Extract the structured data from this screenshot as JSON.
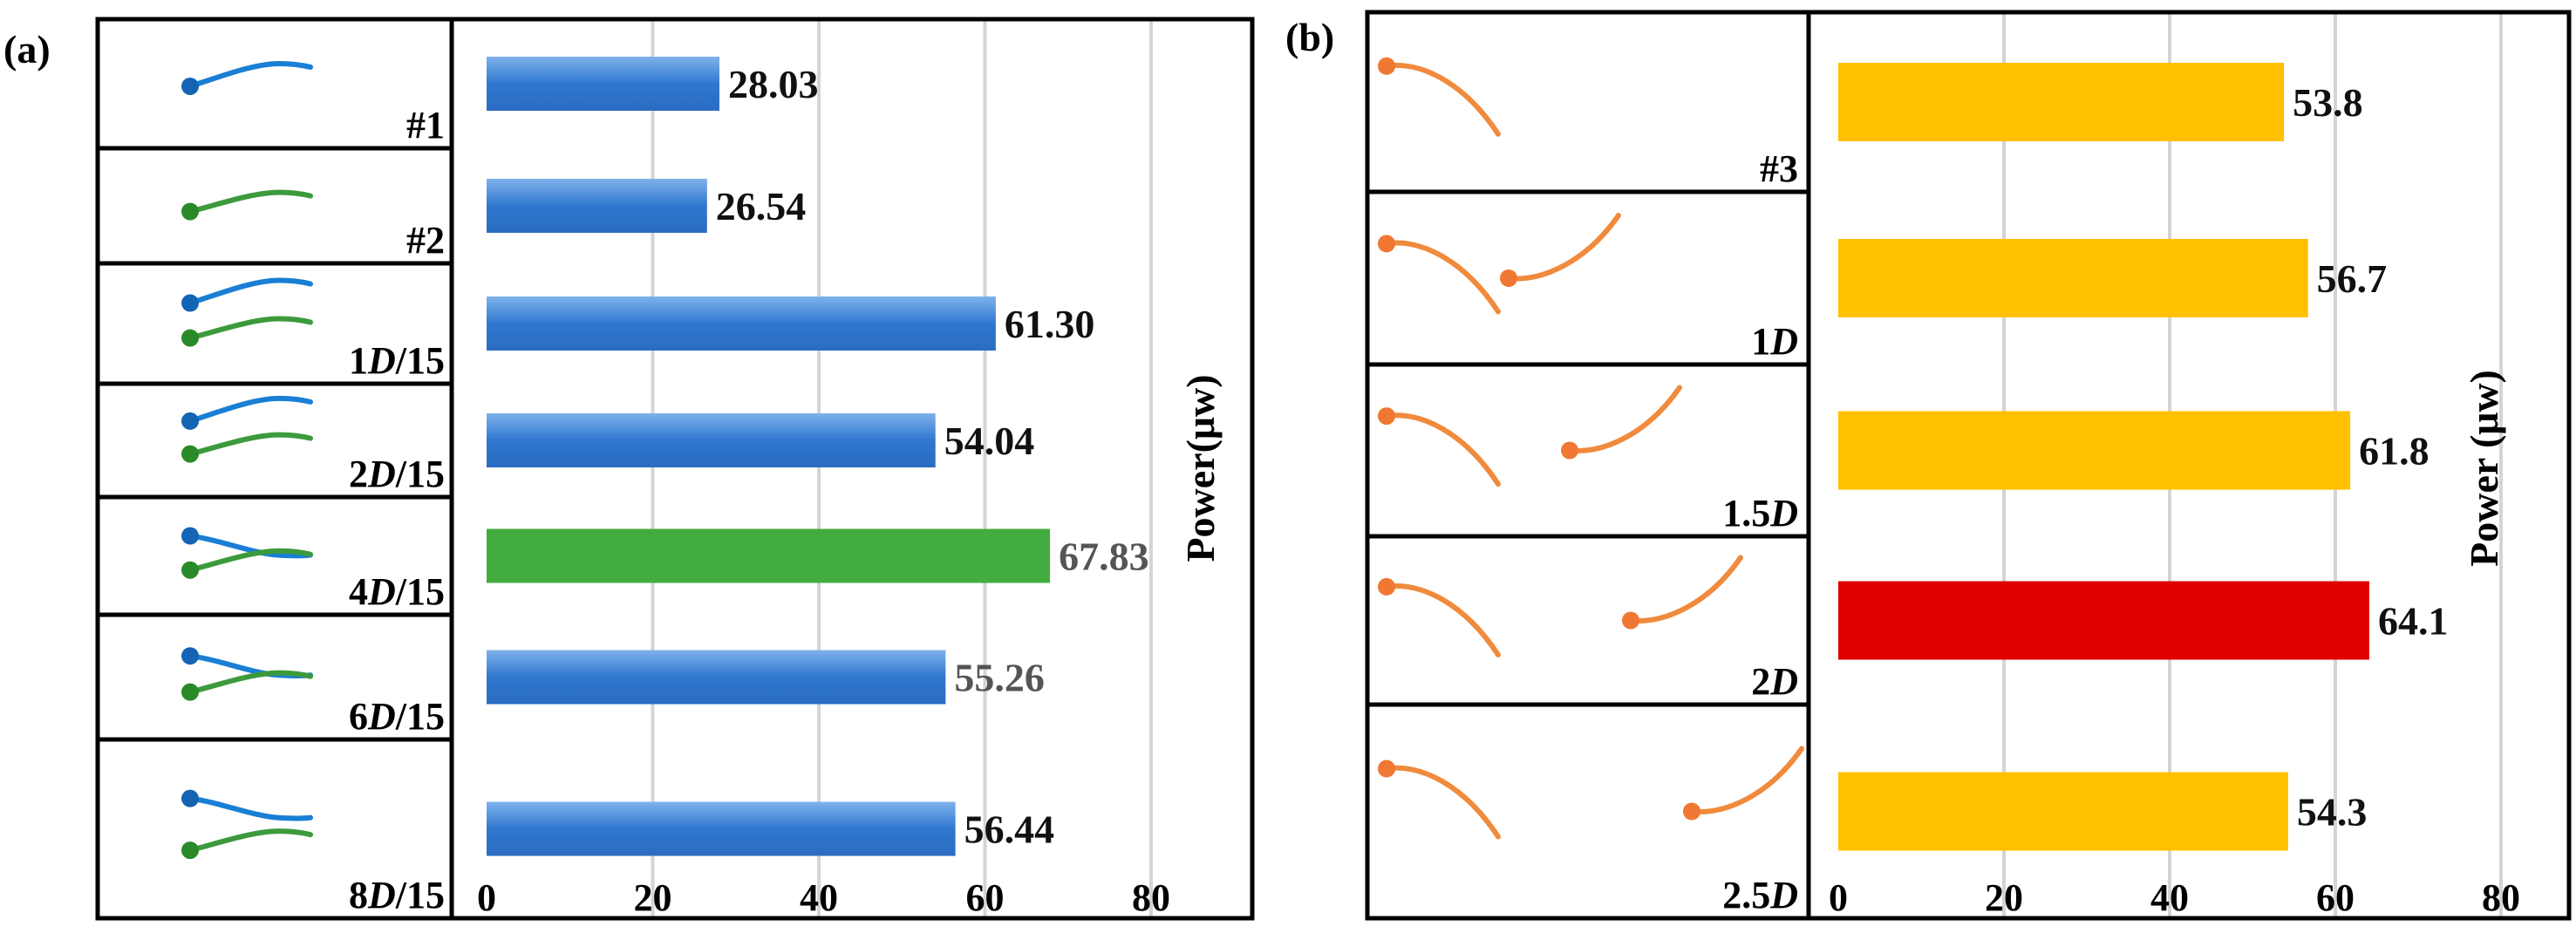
{
  "colors": {
    "blue_bar": "#2f77cf",
    "blue_bar_light": "#7fb2ec",
    "green_bar": "#43ac3e",
    "yellow_bar": "#ffc000",
    "red_bar": "#e00000",
    "blue_curve": "#1a7fd4",
    "blue_dot": "#1464b4",
    "green_curve": "#3c9a3c",
    "green_dot": "#2a8a2a",
    "orange_curve": "#f08a3c",
    "orange_dot": "#f07832",
    "grid": "#d4d4d4",
    "value_dark": "#111111",
    "value_gray": "#555555"
  },
  "chart_data": [
    {
      "panel": "(a)",
      "type": "bar",
      "orientation": "horizontal",
      "categories": [
        "#1",
        "#2",
        "1D/15",
        "2D/15",
        "4D/15",
        "6D/15",
        "8D/15"
      ],
      "category_labels": [
        {
          "plain": "#1",
          "italic": "",
          "suffix": ""
        },
        {
          "plain": "#2",
          "italic": "",
          "suffix": ""
        },
        {
          "plain": "1",
          "italic": "D",
          "suffix": "/15"
        },
        {
          "plain": "2",
          "italic": "D",
          "suffix": "/15"
        },
        {
          "plain": "4",
          "italic": "D",
          "suffix": "/15"
        },
        {
          "plain": "6",
          "italic": "D",
          "suffix": "/15"
        },
        {
          "plain": "8",
          "italic": "D",
          "suffix": "/15"
        }
      ],
      "values": [
        28.03,
        26.54,
        61.3,
        54.04,
        67.83,
        55.26,
        56.44
      ],
      "value_labels": [
        "28.03",
        "26.54",
        "61.30",
        "54.04",
        "67.83",
        "55.26",
        "56.44"
      ],
      "bar_colors": [
        "blue_bar",
        "blue_bar",
        "blue_bar",
        "blue_bar",
        "green_bar",
        "blue_bar",
        "blue_bar"
      ],
      "label_colors": [
        "value_dark",
        "value_dark",
        "value_dark",
        "value_dark",
        "value_gray",
        "value_gray",
        "value_dark"
      ],
      "schematic": [
        {
          "blue": "up",
          "green": null
        },
        {
          "blue": null,
          "green": "up"
        },
        {
          "blue": "up",
          "green": "up"
        },
        {
          "blue": "up",
          "green": "up"
        },
        {
          "blue": "down",
          "green": "up"
        },
        {
          "blue": "down",
          "green": "up"
        },
        {
          "blue": "down",
          "green": "up"
        }
      ],
      "xlim": [
        0,
        80
      ],
      "xticks": [
        0,
        20,
        40,
        60,
        80
      ],
      "ylabel": "Power(μw)",
      "grid": "vertical"
    },
    {
      "panel": "(b)",
      "type": "bar",
      "orientation": "horizontal",
      "categories": [
        "#3",
        "1D",
        "1.5D",
        "2D",
        "2.5D"
      ],
      "category_labels": [
        {
          "plain": "#3",
          "italic": "",
          "suffix": ""
        },
        {
          "plain": "1",
          "italic": "D",
          "suffix": ""
        },
        {
          "plain": "1.5",
          "italic": "D",
          "suffix": ""
        },
        {
          "plain": "2",
          "italic": "D",
          "suffix": ""
        },
        {
          "plain": "2.5",
          "italic": "D",
          "suffix": ""
        }
      ],
      "values": [
        53.8,
        56.7,
        61.8,
        64.1,
        54.3
      ],
      "value_labels": [
        "53.8",
        "56.7",
        "61.8",
        "64.1",
        "54.3"
      ],
      "bar_colors": [
        "yellow_bar",
        "yellow_bar",
        "yellow_bar",
        "red_bar",
        "yellow_bar"
      ],
      "label_colors": [
        "value_dark",
        "value_dark",
        "value_dark",
        "value_dark",
        "value_dark"
      ],
      "spacing_d": [
        null,
        1,
        1.5,
        2,
        2.5
      ],
      "xlim": [
        0,
        80
      ],
      "xticks": [
        0,
        20,
        40,
        60,
        80
      ],
      "ylabel": "Power (μw)",
      "grid": "vertical"
    }
  ]
}
